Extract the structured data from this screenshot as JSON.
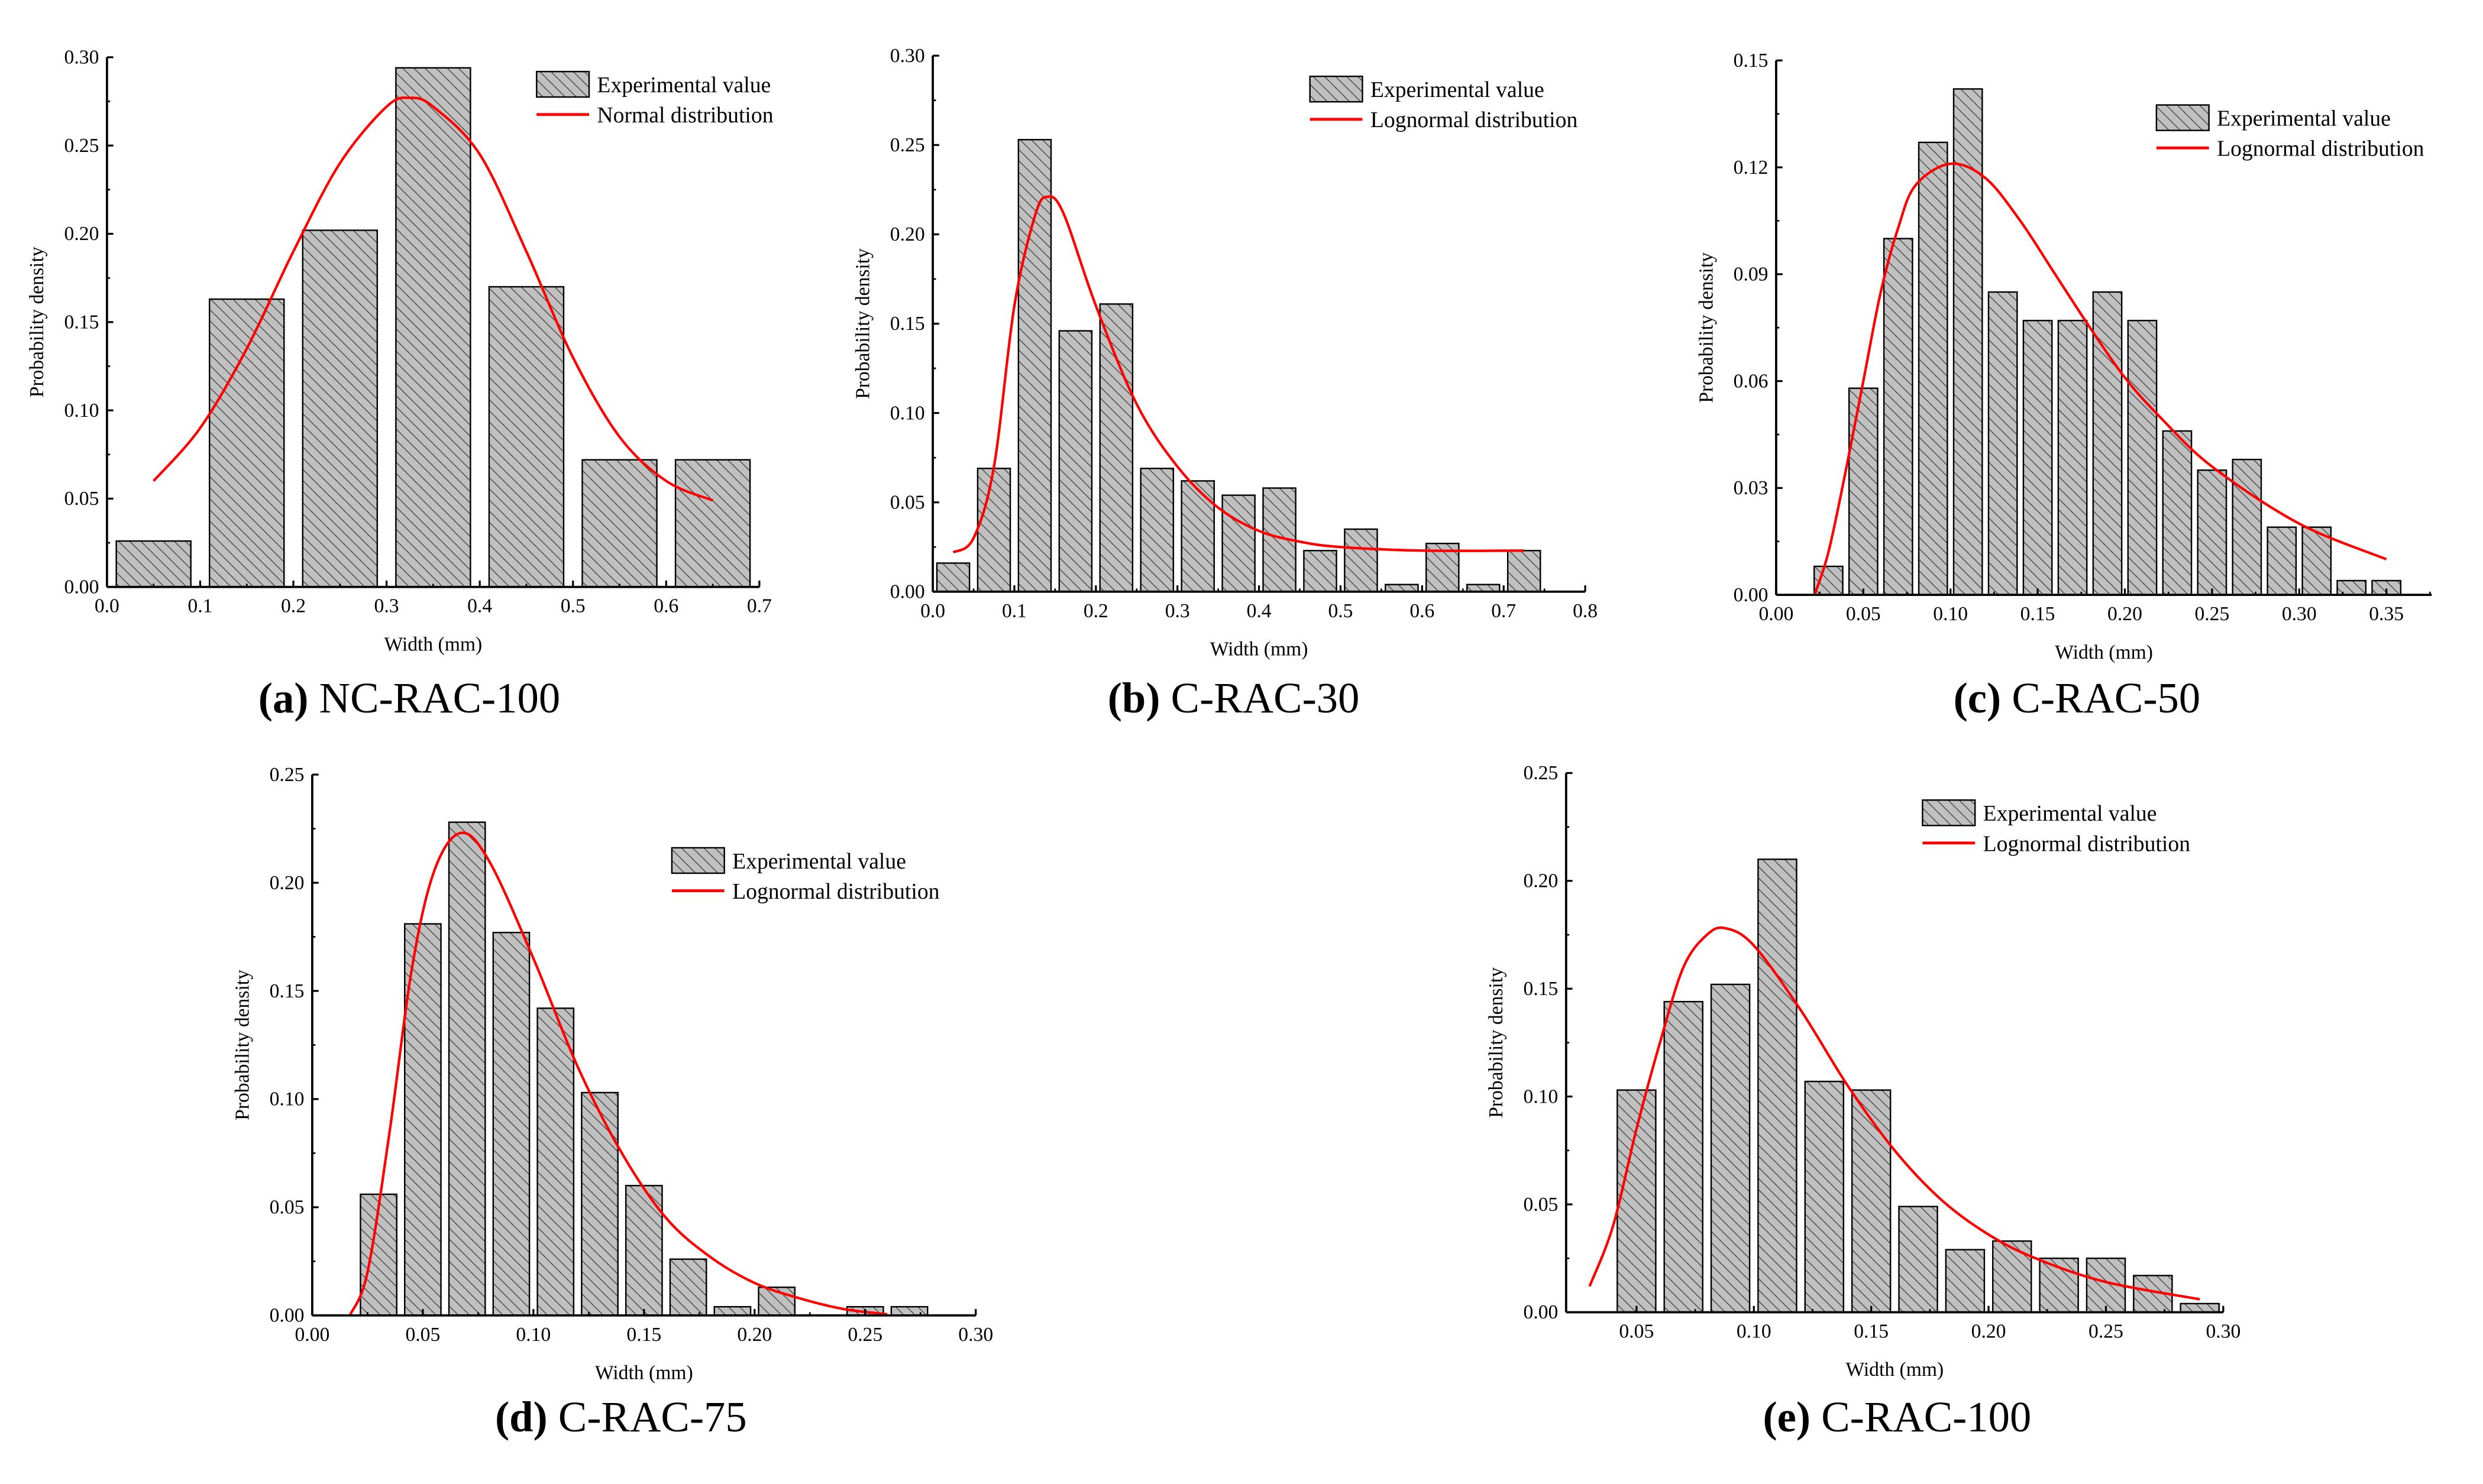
{
  "colors": {
    "bar_fill": "#c0c0c0",
    "bar_stroke": "#000000",
    "curve": "#ff0000",
    "hatch": "#333333"
  },
  "chart_data": [
    {
      "id": "a",
      "type": "bar",
      "caption_letter": "(a)",
      "caption_name": "NC-RAC-100",
      "xlabel": "Width (mm)",
      "ylabel": "Probability density",
      "xlim": [
        0,
        0.7
      ],
      "ylim": [
        0,
        0.3
      ],
      "xticks": [
        "0.0",
        "0.1",
        "0.2",
        "0.3",
        "0.4",
        "0.5",
        "0.6",
        "0.7"
      ],
      "xtick_values": [
        0,
        0.1,
        0.2,
        0.3,
        0.4,
        0.5,
        0.6,
        0.7
      ],
      "yticks": [
        "0.00",
        "0.05",
        "0.10",
        "0.15",
        "0.20",
        "0.25",
        "0.30"
      ],
      "ytick_values": [
        0,
        0.05,
        0.1,
        0.15,
        0.2,
        0.25,
        0.3
      ],
      "legend": {
        "bar": "Experimental value",
        "line": "Normal distribution",
        "placement": "top-right"
      },
      "bin_width": 0.1,
      "bar_fraction": 0.8,
      "bars": {
        "x": [
          0.05,
          0.15,
          0.25,
          0.35,
          0.45,
          0.55,
          0.65
        ],
        "y": [
          0.026,
          0.163,
          0.202,
          0.294,
          0.17,
          0.072,
          0.072
        ]
      },
      "curve": {
        "x": [
          0.05,
          0.1,
          0.15,
          0.2,
          0.25,
          0.3,
          0.325,
          0.35,
          0.4,
          0.45,
          0.5,
          0.55,
          0.6,
          0.65
        ],
        "y": [
          0.06,
          0.09,
          0.135,
          0.19,
          0.24,
          0.272,
          0.277,
          0.272,
          0.245,
          0.19,
          0.13,
          0.085,
          0.06,
          0.049
        ]
      }
    },
    {
      "id": "b",
      "type": "bar",
      "caption_letter": "(b)",
      "caption_name": "C-RAC-30",
      "xlabel": "Width (mm)",
      "ylabel": "Probability density",
      "xlim": [
        0,
        0.8
      ],
      "ylim": [
        0,
        0.3
      ],
      "xticks": [
        "0.0",
        "0.1",
        "0.2",
        "0.3",
        "0.4",
        "0.5",
        "0.6",
        "0.7",
        "0.8"
      ],
      "xtick_values": [
        0,
        0.1,
        0.2,
        0.3,
        0.4,
        0.5,
        0.6,
        0.7,
        0.8
      ],
      "yticks": [
        "0.00",
        "0.05",
        "0.10",
        "0.15",
        "0.20",
        "0.25",
        "0.30"
      ],
      "ytick_values": [
        0,
        0.05,
        0.1,
        0.15,
        0.2,
        0.25,
        0.3
      ],
      "legend": {
        "bar": "Experimental value",
        "line": "Lognormal distribution",
        "placement": "top-right"
      },
      "bin_width": 0.05,
      "bar_fraction": 0.8,
      "bars": {
        "x": [
          0.025,
          0.075,
          0.125,
          0.175,
          0.225,
          0.275,
          0.325,
          0.375,
          0.425,
          0.475,
          0.525,
          0.575,
          0.625,
          0.675,
          0.725
        ],
        "y": [
          0.016,
          0.069,
          0.253,
          0.146,
          0.161,
          0.069,
          0.062,
          0.054,
          0.058,
          0.023,
          0.035,
          0.004,
          0.027,
          0.004,
          0.023
        ]
      },
      "curve": {
        "x": [
          0.025,
          0.05,
          0.075,
          0.1,
          0.125,
          0.14,
          0.16,
          0.2,
          0.25,
          0.3,
          0.35,
          0.4,
          0.45,
          0.5,
          0.6,
          0.725
        ],
        "y": [
          0.022,
          0.03,
          0.07,
          0.16,
          0.21,
          0.221,
          0.212,
          0.16,
          0.105,
          0.07,
          0.047,
          0.034,
          0.028,
          0.025,
          0.023,
          0.023
        ]
      }
    },
    {
      "id": "c",
      "type": "bar",
      "caption_letter": "(c)",
      "caption_name": "C-RAC-50",
      "xlabel": "Width (mm)",
      "ylabel": "Probability density",
      "xlim": [
        0,
        0.376
      ],
      "ylim": [
        0,
        0.15
      ],
      "xticks": [
        "0.00",
        "0.05",
        "0.10",
        "0.15",
        "0.20",
        "0.25",
        "0.30",
        "0.35"
      ],
      "xtick_values": [
        0,
        0.05,
        0.1,
        0.15,
        0.2,
        0.25,
        0.3,
        0.35
      ],
      "yticks": [
        "0.00",
        "0.03",
        "0.06",
        "0.09",
        "0.12",
        "0.15"
      ],
      "ytick_values": [
        0,
        0.03,
        0.06,
        0.09,
        0.12,
        0.15
      ],
      "legend": {
        "bar": "Experimental value",
        "line": "Lognormal distribution",
        "placement": "top-right"
      },
      "bin_width": 0.02,
      "bar_fraction": 0.82,
      "bars": {
        "x": [
          0.03,
          0.05,
          0.07,
          0.09,
          0.11,
          0.13,
          0.15,
          0.17,
          0.19,
          0.21,
          0.23,
          0.25,
          0.27,
          0.29,
          0.31,
          0.33,
          0.35
        ],
        "y": [
          0.008,
          0.058,
          0.1,
          0.127,
          0.142,
          0.085,
          0.077,
          0.077,
          0.085,
          0.077,
          0.046,
          0.035,
          0.038,
          0.019,
          0.019,
          0.004,
          0.004
        ]
      },
      "curve": {
        "x": [
          0.022,
          0.03,
          0.04,
          0.05,
          0.06,
          0.07,
          0.08,
          0.1,
          0.12,
          0.14,
          0.16,
          0.18,
          0.2,
          0.22,
          0.25,
          0.3,
          0.35
        ],
        "y": [
          0,
          0.012,
          0.035,
          0.06,
          0.085,
          0.103,
          0.115,
          0.121,
          0.117,
          0.105,
          0.09,
          0.075,
          0.061,
          0.05,
          0.036,
          0.02,
          0.01
        ]
      }
    },
    {
      "id": "d",
      "type": "bar",
      "caption_letter": "(d)",
      "caption_name": "C-RAC-75",
      "xlabel": "Width (mm)",
      "ylabel": "Probability density",
      "xlim": [
        0,
        0.3
      ],
      "ylim": [
        0,
        0.25
      ],
      "xticks": [
        "0.00",
        "0.05",
        "0.10",
        "0.15",
        "0.20",
        "0.25",
        "0.30"
      ],
      "xtick_values": [
        0,
        0.05,
        0.1,
        0.15,
        0.2,
        0.25,
        0.3
      ],
      "yticks": [
        "0.00",
        "0.05",
        "0.10",
        "0.15",
        "0.20",
        "0.25"
      ],
      "ytick_values": [
        0,
        0.05,
        0.1,
        0.15,
        0.2,
        0.25
      ],
      "legend": {
        "bar": "Experimental value",
        "line": "Lognormal distribution",
        "placement": "top-right"
      },
      "bin_width": 0.02,
      "bar_fraction": 0.82,
      "bars": {
        "x": [
          0.03,
          0.05,
          0.07,
          0.09,
          0.11,
          0.13,
          0.15,
          0.17,
          0.19,
          0.21,
          0.25,
          0.27
        ],
        "y": [
          0.056,
          0.181,
          0.228,
          0.177,
          0.142,
          0.103,
          0.06,
          0.026,
          0.004,
          0.013,
          0.004,
          0.004
        ]
      },
      "curve": {
        "x": [
          0.017,
          0.025,
          0.035,
          0.045,
          0.055,
          0.067,
          0.08,
          0.1,
          0.12,
          0.14,
          0.16,
          0.18,
          0.2,
          0.22,
          0.24,
          0.26
        ],
        "y": [
          0,
          0.02,
          0.085,
          0.16,
          0.205,
          0.223,
          0.21,
          0.165,
          0.115,
          0.075,
          0.045,
          0.027,
          0.015,
          0.008,
          0.003,
          0.0005
        ]
      }
    },
    {
      "id": "e",
      "type": "bar",
      "caption_letter": "(e)",
      "caption_name": "C-RAC-100",
      "xlabel": "Width (mm)",
      "ylabel": "Probability density",
      "xlim": [
        0.02,
        0.3
      ],
      "ylim": [
        0,
        0.25
      ],
      "xticks": [
        "0.05",
        "0.10",
        "0.15",
        "0.20",
        "0.25",
        "0.30"
      ],
      "xtick_values": [
        0.05,
        0.1,
        0.15,
        0.2,
        0.25,
        0.3
      ],
      "yticks": [
        "0.00",
        "0.05",
        "0.10",
        "0.15",
        "0.20",
        "0.25"
      ],
      "ytick_values": [
        0,
        0.05,
        0.1,
        0.15,
        0.2,
        0.25
      ],
      "legend": {
        "bar": "Experimental value",
        "line": "Lognormal distribution",
        "placement": "top-right"
      },
      "bin_width": 0.02,
      "bar_fraction": 0.82,
      "bars": {
        "x": [
          0.05,
          0.07,
          0.09,
          0.11,
          0.13,
          0.15,
          0.17,
          0.19,
          0.21,
          0.23,
          0.25,
          0.27,
          0.29
        ],
        "y": [
          0.103,
          0.144,
          0.152,
          0.21,
          0.107,
          0.103,
          0.049,
          0.029,
          0.033,
          0.025,
          0.025,
          0.017,
          0.004
        ]
      },
      "curve": {
        "x": [
          0.03,
          0.04,
          0.05,
          0.06,
          0.07,
          0.08,
          0.088,
          0.1,
          0.12,
          0.14,
          0.16,
          0.18,
          0.2,
          0.22,
          0.25,
          0.29
        ],
        "y": [
          0.012,
          0.04,
          0.085,
          0.125,
          0.16,
          0.175,
          0.178,
          0.17,
          0.14,
          0.105,
          0.075,
          0.052,
          0.036,
          0.025,
          0.014,
          0.006
        ]
      }
    }
  ]
}
